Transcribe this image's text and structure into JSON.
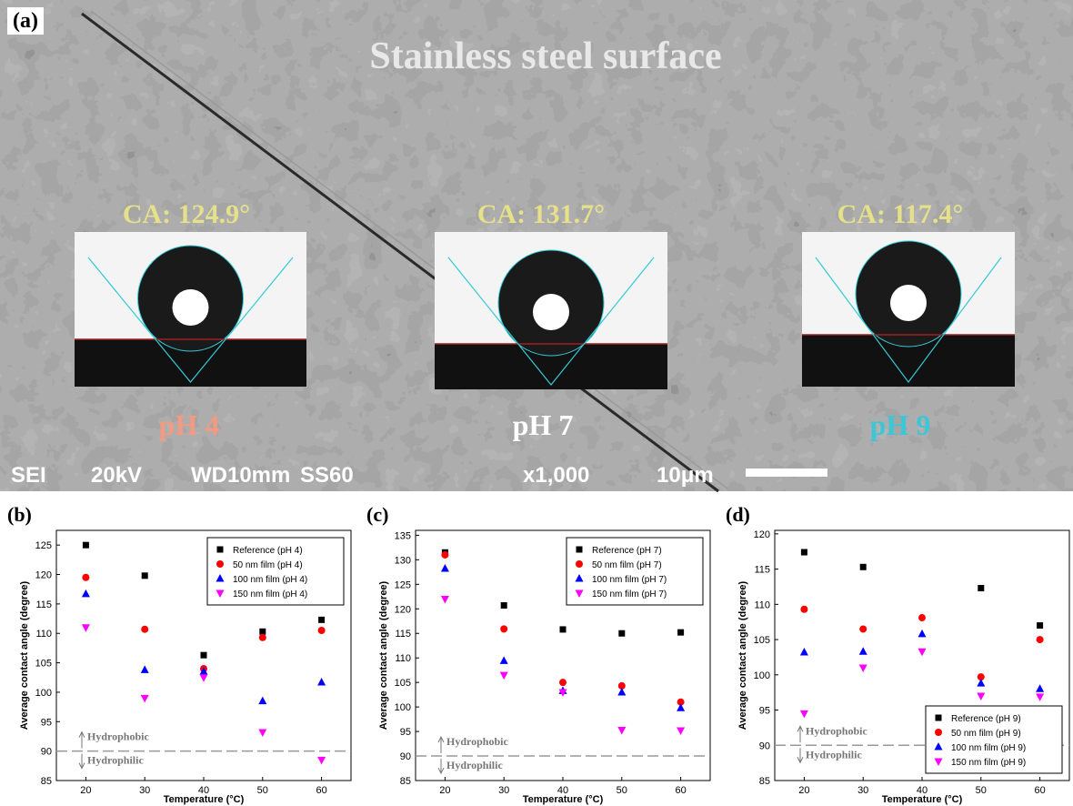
{
  "image_panel": {
    "panel_label": "(a)",
    "title": "Stainless steel surface",
    "contact_angles": [
      "CA: 124.9°",
      "CA: 131.7°",
      "CA: 117.4°"
    ],
    "ph_labels": [
      "pH 4",
      "pH 7",
      "pH 9"
    ],
    "info_bar": [
      "SEI",
      "20kV",
      "WD10mm",
      "SS60",
      "x1,000",
      "10μm"
    ]
  },
  "chart_data": [
    {
      "type": "scatter",
      "panel_label": "(b)",
      "y_label": "Average contact angle (degree)",
      "x_label": "Temperature (°C)",
      "x": [
        20,
        30,
        40,
        50,
        60
      ],
      "xlim": [
        15,
        65
      ],
      "xticks": [
        20,
        30,
        40,
        50,
        60
      ],
      "ylim": [
        85,
        127.5
      ],
      "yticks": [
        85,
        90,
        95,
        100,
        105,
        110,
        115,
        120,
        125
      ],
      "reference_line": 90,
      "annotations": [
        "Hydrophobic",
        "Hydrophilic"
      ],
      "legend": "upper right",
      "series": [
        {
          "name": "Reference (pH 4)",
          "color": "#000000",
          "marker": "square",
          "values": [
            125,
            119.8,
            106.3,
            110.3,
            112.3
          ]
        },
        {
          "name": "50 nm film (pH 4)",
          "color": "#ff0000",
          "marker": "circle",
          "values": [
            119.5,
            110.7,
            104,
            109.3,
            110.5
          ]
        },
        {
          "name": "100 nm film (pH 4)",
          "color": "#0000ff",
          "marker": "triangle-up",
          "values": [
            116.7,
            103.8,
            103.5,
            98.5,
            101.7
          ]
        },
        {
          "name": "150 nm film (pH 4)",
          "color": "#ff00ff",
          "marker": "triangle-down",
          "values": [
            111,
            99,
            102.5,
            93.2,
            88.5
          ]
        }
      ]
    },
    {
      "type": "scatter",
      "panel_label": "(c)",
      "y_label": "Average contact angle (degree)",
      "x_label": "Temperature (°C)",
      "x": [
        20,
        30,
        40,
        50,
        60
      ],
      "xlim": [
        15,
        65
      ],
      "xticks": [
        20,
        30,
        40,
        50,
        60
      ],
      "ylim": [
        85,
        136
      ],
      "yticks": [
        85,
        90,
        95,
        100,
        105,
        110,
        115,
        120,
        125,
        130,
        135
      ],
      "reference_line": 90,
      "annotations": [
        "Hydrophobic",
        "Hydrophilic"
      ],
      "legend": "upper right",
      "series": [
        {
          "name": "Reference (pH 7)",
          "color": "#000000",
          "marker": "square",
          "values": [
            131.5,
            120.7,
            115.8,
            115,
            115.2
          ]
        },
        {
          "name": "50 nm film (pH 7)",
          "color": "#ff0000",
          "marker": "circle",
          "values": [
            131,
            115.9,
            105,
            104.3,
            101
          ]
        },
        {
          "name": "100 nm film (pH 7)",
          "color": "#0000ff",
          "marker": "triangle-up",
          "values": [
            128.2,
            109.4,
            103.3,
            103,
            99.8
          ]
        },
        {
          "name": "150 nm film (pH 7)",
          "color": "#ff00ff",
          "marker": "triangle-down",
          "values": [
            122,
            106.5,
            103,
            95.3,
            95.2
          ]
        }
      ]
    },
    {
      "type": "scatter",
      "panel_label": "(d)",
      "y_label": "Average contact angle (degree)",
      "x_label": "Temperature (°C)",
      "x": [
        20,
        30,
        40,
        50,
        60
      ],
      "xlim": [
        15,
        65
      ],
      "xticks": [
        20,
        30,
        40,
        50,
        60
      ],
      "ylim": [
        85,
        120.5
      ],
      "yticks": [
        85,
        90,
        95,
        100,
        105,
        110,
        115,
        120
      ],
      "reference_line": 90,
      "annotations": [
        "Hydrophobic",
        "Hydrophilic"
      ],
      "legend": "lower right",
      "series": [
        {
          "name": "Reference (pH 9)",
          "color": "#000000",
          "marker": "square",
          "values": [
            117.4,
            115.3,
            null,
            112.3,
            107
          ]
        },
        {
          "name": "50 nm film (pH 9)",
          "color": "#ff0000",
          "marker": "circle",
          "values": [
            109.3,
            106.5,
            108.1,
            99.7,
            105
          ]
        },
        {
          "name": "100 nm film (pH 9)",
          "color": "#0000ff",
          "marker": "triangle-up",
          "values": [
            103.2,
            103.3,
            105.8,
            98.8,
            98
          ]
        },
        {
          "name": "150 nm film (pH 9)",
          "color": "#ff00ff",
          "marker": "triangle-down",
          "values": [
            94.5,
            101,
            103.3,
            97,
            96.9
          ]
        }
      ]
    }
  ]
}
